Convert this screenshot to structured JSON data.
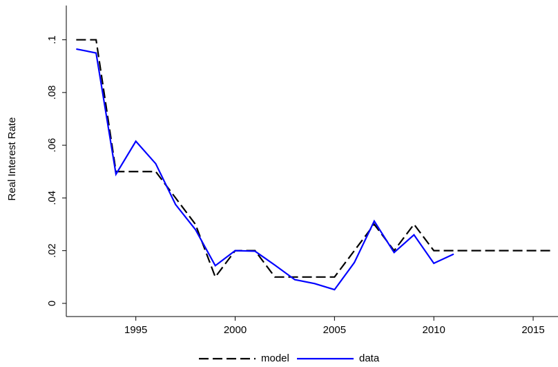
{
  "chart_data": {
    "type": "line",
    "ylabel": "Real Interest Rate",
    "x": [
      1992,
      1993,
      1994,
      1995,
      1996,
      1997,
      1998,
      1999,
      2000,
      2001,
      2002,
      2003,
      2004,
      2005,
      2006,
      2007,
      2008,
      2009,
      2010,
      2011,
      2012,
      2013,
      2014,
      2015,
      2016
    ],
    "series": [
      {
        "name": "model",
        "color": "#000000",
        "dash": true,
        "values": [
          0.1,
          0.1,
          0.05,
          0.05,
          0.05,
          0.04,
          0.03,
          0.01,
          0.02,
          0.02,
          0.01,
          0.01,
          0.01,
          0.01,
          0.02,
          0.03,
          0.02,
          0.03,
          0.02,
          0.02,
          0.02,
          0.02,
          0.02,
          0.02,
          0.02
        ]
      },
      {
        "name": "data",
        "color": "#0000ff",
        "dash": false,
        "values": [
          0.0965,
          0.095,
          0.049,
          0.0615,
          0.053,
          0.0375,
          0.028,
          0.0143,
          0.02,
          0.0198,
          0.0145,
          0.009,
          0.0075,
          0.0052,
          0.0155,
          0.0312,
          0.0193,
          0.026,
          0.0152,
          0.0187,
          null,
          null,
          null,
          null,
          null
        ]
      }
    ],
    "xlim": [
      1991.5,
      2016.25
    ],
    "ylim": [
      -0.005,
      0.113
    ],
    "xticks": [
      1995,
      2000,
      2005,
      2010,
      2015
    ],
    "yticks": [
      0,
      {
        "value": 0.02,
        "label": ".02"
      },
      {
        "value": 0.04,
        "label": ".04"
      },
      {
        "value": 0.06,
        "label": ".06"
      },
      {
        "value": 0.08,
        "label": ".08"
      },
      {
        "value": 0.1,
        "label": ".1"
      }
    ],
    "grid": false,
    "legend": "bottom"
  }
}
